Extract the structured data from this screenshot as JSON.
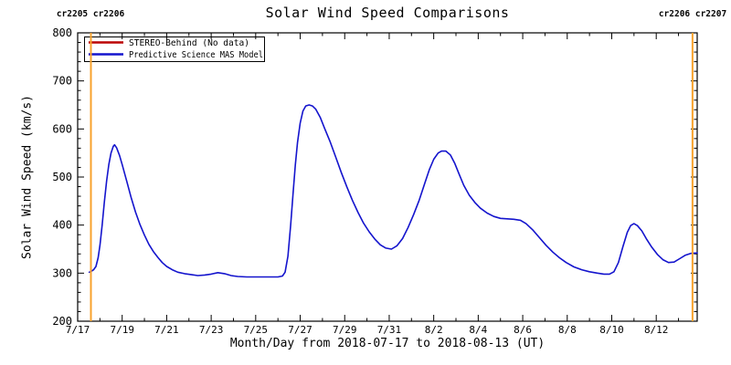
{
  "page": {
    "title": "Solar Wind Speed Comparisons"
  },
  "annotations": {
    "top_left": "cr2205 cr2206",
    "top_right": "cr2206 cr2207"
  },
  "colors": {
    "carrington_line": "#f8a22c",
    "stereo_line": "#bb0000",
    "model_line": "#1414cd",
    "axis": "#000000",
    "background": "#ffffff"
  },
  "legend": {
    "items": [
      {
        "label": "STEREO-Behind (No data)",
        "color": "#bb0000"
      },
      {
        "label": "Predictive Science MAS Model",
        "color": "#1414cd"
      }
    ]
  },
  "chart_data": {
    "type": "line",
    "title": "Solar Wind Speed Comparisons",
    "xlabel": "Month/Day from 2018-07-17 to 2018-08-13 (UT)",
    "ylabel": "Solar Wind Speed (km/s)",
    "x_unit": "days since 2018-07-17 00:00 UT",
    "xlim_days": [
      0,
      27.84
    ],
    "ylim": [
      200,
      800
    ],
    "grid": false,
    "legend_position": "upper-left-inside",
    "x_major_ticks": [
      {
        "day": 0,
        "label": "7/17"
      },
      {
        "day": 2,
        "label": "7/19"
      },
      {
        "day": 4,
        "label": "7/21"
      },
      {
        "day": 6,
        "label": "7/23"
      },
      {
        "day": 8,
        "label": "7/25"
      },
      {
        "day": 10,
        "label": "7/27"
      },
      {
        "day": 12,
        "label": "7/29"
      },
      {
        "day": 14,
        "label": "7/31"
      },
      {
        "day": 16,
        "label": "8/2"
      },
      {
        "day": 18,
        "label": "8/4"
      },
      {
        "day": 20,
        "label": "8/6"
      },
      {
        "day": 22,
        "label": "8/8"
      },
      {
        "day": 24,
        "label": "8/10"
      },
      {
        "day": 26,
        "label": "8/12"
      }
    ],
    "x_minor_step_days": 1,
    "y_major_ticks": [
      200,
      300,
      400,
      500,
      600,
      700,
      800
    ],
    "y_minor_step": 20,
    "carrington_boundaries_days": [
      0.595,
      27.63
    ],
    "series": [
      {
        "name": "STEREO-Behind (No data)",
        "color": "#bb0000",
        "points": []
      },
      {
        "name": "Predictive Science MAS Model",
        "color": "#1414cd",
        "points": [
          [
            0.52,
            302
          ],
          [
            0.62,
            304
          ],
          [
            0.72,
            307
          ],
          [
            0.82,
            314
          ],
          [
            0.92,
            332
          ],
          [
            1.0,
            358
          ],
          [
            1.1,
            400
          ],
          [
            1.2,
            448
          ],
          [
            1.3,
            492
          ],
          [
            1.4,
            526
          ],
          [
            1.5,
            550
          ],
          [
            1.6,
            564
          ],
          [
            1.66,
            567
          ],
          [
            1.75,
            561
          ],
          [
            1.88,
            545
          ],
          [
            2.0,
            526
          ],
          [
            2.2,
            492
          ],
          [
            2.4,
            458
          ],
          [
            2.6,
            427
          ],
          [
            2.8,
            401
          ],
          [
            3.0,
            379
          ],
          [
            3.2,
            360
          ],
          [
            3.4,
            345
          ],
          [
            3.6,
            333
          ],
          [
            3.8,
            322
          ],
          [
            4.0,
            314
          ],
          [
            4.25,
            307
          ],
          [
            4.5,
            302
          ],
          [
            4.8,
            299
          ],
          [
            5.1,
            297
          ],
          [
            5.4,
            295
          ],
          [
            5.7,
            296
          ],
          [
            6.0,
            298
          ],
          [
            6.3,
            301
          ],
          [
            6.6,
            299
          ],
          [
            6.9,
            295
          ],
          [
            7.2,
            293
          ],
          [
            7.6,
            292
          ],
          [
            8.1,
            292
          ],
          [
            8.6,
            292
          ],
          [
            9.0,
            292
          ],
          [
            9.2,
            294
          ],
          [
            9.32,
            302
          ],
          [
            9.45,
            335
          ],
          [
            9.57,
            400
          ],
          [
            9.68,
            465
          ],
          [
            9.78,
            525
          ],
          [
            9.88,
            572
          ],
          [
            10.0,
            612
          ],
          [
            10.12,
            637
          ],
          [
            10.25,
            648
          ],
          [
            10.4,
            650
          ],
          [
            10.55,
            648
          ],
          [
            10.7,
            641
          ],
          [
            10.9,
            624
          ],
          [
            11.1,
            601
          ],
          [
            11.35,
            573
          ],
          [
            11.6,
            541
          ],
          [
            11.85,
            509
          ],
          [
            12.1,
            479
          ],
          [
            12.35,
            451
          ],
          [
            12.6,
            426
          ],
          [
            12.85,
            404
          ],
          [
            13.1,
            386
          ],
          [
            13.35,
            371
          ],
          [
            13.6,
            359
          ],
          [
            13.85,
            352
          ],
          [
            14.1,
            350
          ],
          [
            14.35,
            357
          ],
          [
            14.6,
            372
          ],
          [
            14.85,
            395
          ],
          [
            15.1,
            422
          ],
          [
            15.35,
            452
          ],
          [
            15.6,
            487
          ],
          [
            15.8,
            515
          ],
          [
            16.0,
            537
          ],
          [
            16.2,
            550
          ],
          [
            16.35,
            554
          ],
          [
            16.55,
            554
          ],
          [
            16.75,
            546
          ],
          [
            16.95,
            528
          ],
          [
            17.15,
            505
          ],
          [
            17.35,
            483
          ],
          [
            17.6,
            462
          ],
          [
            17.85,
            447
          ],
          [
            18.1,
            435
          ],
          [
            18.4,
            425
          ],
          [
            18.7,
            418
          ],
          [
            19.0,
            414
          ],
          [
            19.3,
            413
          ],
          [
            19.6,
            412
          ],
          [
            19.9,
            410
          ],
          [
            20.15,
            403
          ],
          [
            20.45,
            390
          ],
          [
            20.75,
            374
          ],
          [
            21.05,
            358
          ],
          [
            21.35,
            344
          ],
          [
            21.65,
            332
          ],
          [
            21.95,
            322
          ],
          [
            22.3,
            313
          ],
          [
            22.65,
            307
          ],
          [
            23.0,
            303
          ],
          [
            23.35,
            300
          ],
          [
            23.65,
            298
          ],
          [
            23.9,
            298
          ],
          [
            24.1,
            303
          ],
          [
            24.3,
            322
          ],
          [
            24.5,
            355
          ],
          [
            24.7,
            385
          ],
          [
            24.85,
            399
          ],
          [
            25.0,
            403
          ],
          [
            25.15,
            399
          ],
          [
            25.35,
            388
          ],
          [
            25.55,
            372
          ],
          [
            25.8,
            354
          ],
          [
            26.05,
            339
          ],
          [
            26.3,
            328
          ],
          [
            26.55,
            322
          ],
          [
            26.8,
            323
          ],
          [
            27.05,
            330
          ],
          [
            27.3,
            337
          ],
          [
            27.55,
            341
          ],
          [
            27.84,
            342
          ]
        ]
      }
    ]
  }
}
